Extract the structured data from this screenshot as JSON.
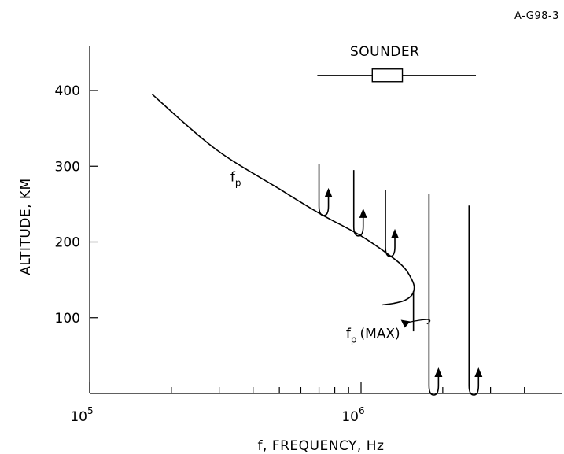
{
  "chart_data": {
    "type": "line",
    "figure_id": "A-G98-3",
    "xlabel": "f, FREQUENCY, Hz",
    "ylabel": "ALTITUDE, KM",
    "x_scale": "log",
    "xlim": [
      100000,
      5000000
    ],
    "ylim": [
      0,
      460
    ],
    "x_tick_labels": [
      {
        "base": "10",
        "exp": "5",
        "value": 100000
      },
      {
        "base": "10",
        "exp": "6",
        "value": 1000000
      }
    ],
    "x_minor_ticks": [
      200000,
      300000,
      400000,
      500000,
      600000,
      700000,
      800000,
      900000,
      2000000,
      3000000,
      4000000
    ],
    "y_ticks": [
      {
        "label": "100",
        "value": 100
      },
      {
        "label": "200",
        "value": 200
      },
      {
        "label": "300",
        "value": 300
      },
      {
        "label": "400",
        "value": 400
      }
    ],
    "series": [
      {
        "name": "fp",
        "points": [
          {
            "f": 170000,
            "alt": 395
          },
          {
            "f": 290000,
            "alt": 323
          },
          {
            "f": 500000,
            "alt": 270
          },
          {
            "f": 700000,
            "alt": 238
          },
          {
            "f": 1000000,
            "alt": 208
          },
          {
            "f": 1300000,
            "alt": 180
          },
          {
            "f": 1450000,
            "alt": 165
          },
          {
            "f": 1540000,
            "alt": 150
          },
          {
            "f": 1570000,
            "alt": 140
          },
          {
            "f": 1540000,
            "alt": 130
          },
          {
            "f": 1450000,
            "alt": 123
          },
          {
            "f": 1320000,
            "alt": 119
          },
          {
            "f": 1200000,
            "alt": 117
          }
        ]
      }
    ],
    "vertical_marker": {
      "f": 1560000,
      "alt_from": 82,
      "alt_to": 135
    },
    "reflected_traces": [
      {
        "f": 700000,
        "top": 303,
        "bottom": 237
      },
      {
        "f": 940000,
        "top": 295,
        "bottom": 210
      },
      {
        "f": 1230000,
        "top": 268,
        "bottom": 183
      },
      {
        "f": 1780000,
        "top": 263,
        "bottom": 0
      },
      {
        "f": 2500000,
        "top": 248,
        "bottom": 0
      }
    ],
    "sounder": {
      "label": "SOUNDER",
      "f_left": 690000,
      "f_right": 2650000,
      "box_left": 1100000,
      "box_right": 1420000,
      "alt": 420
    },
    "annotations": {
      "fp_label": {
        "main": "f",
        "sub": "p",
        "f": 330000,
        "alt": 280
      },
      "fpmax_label": {
        "main": "f",
        "sub": "p",
        "suffix": "(MAX)",
        "f": 880000,
        "alt": 73
      }
    }
  }
}
